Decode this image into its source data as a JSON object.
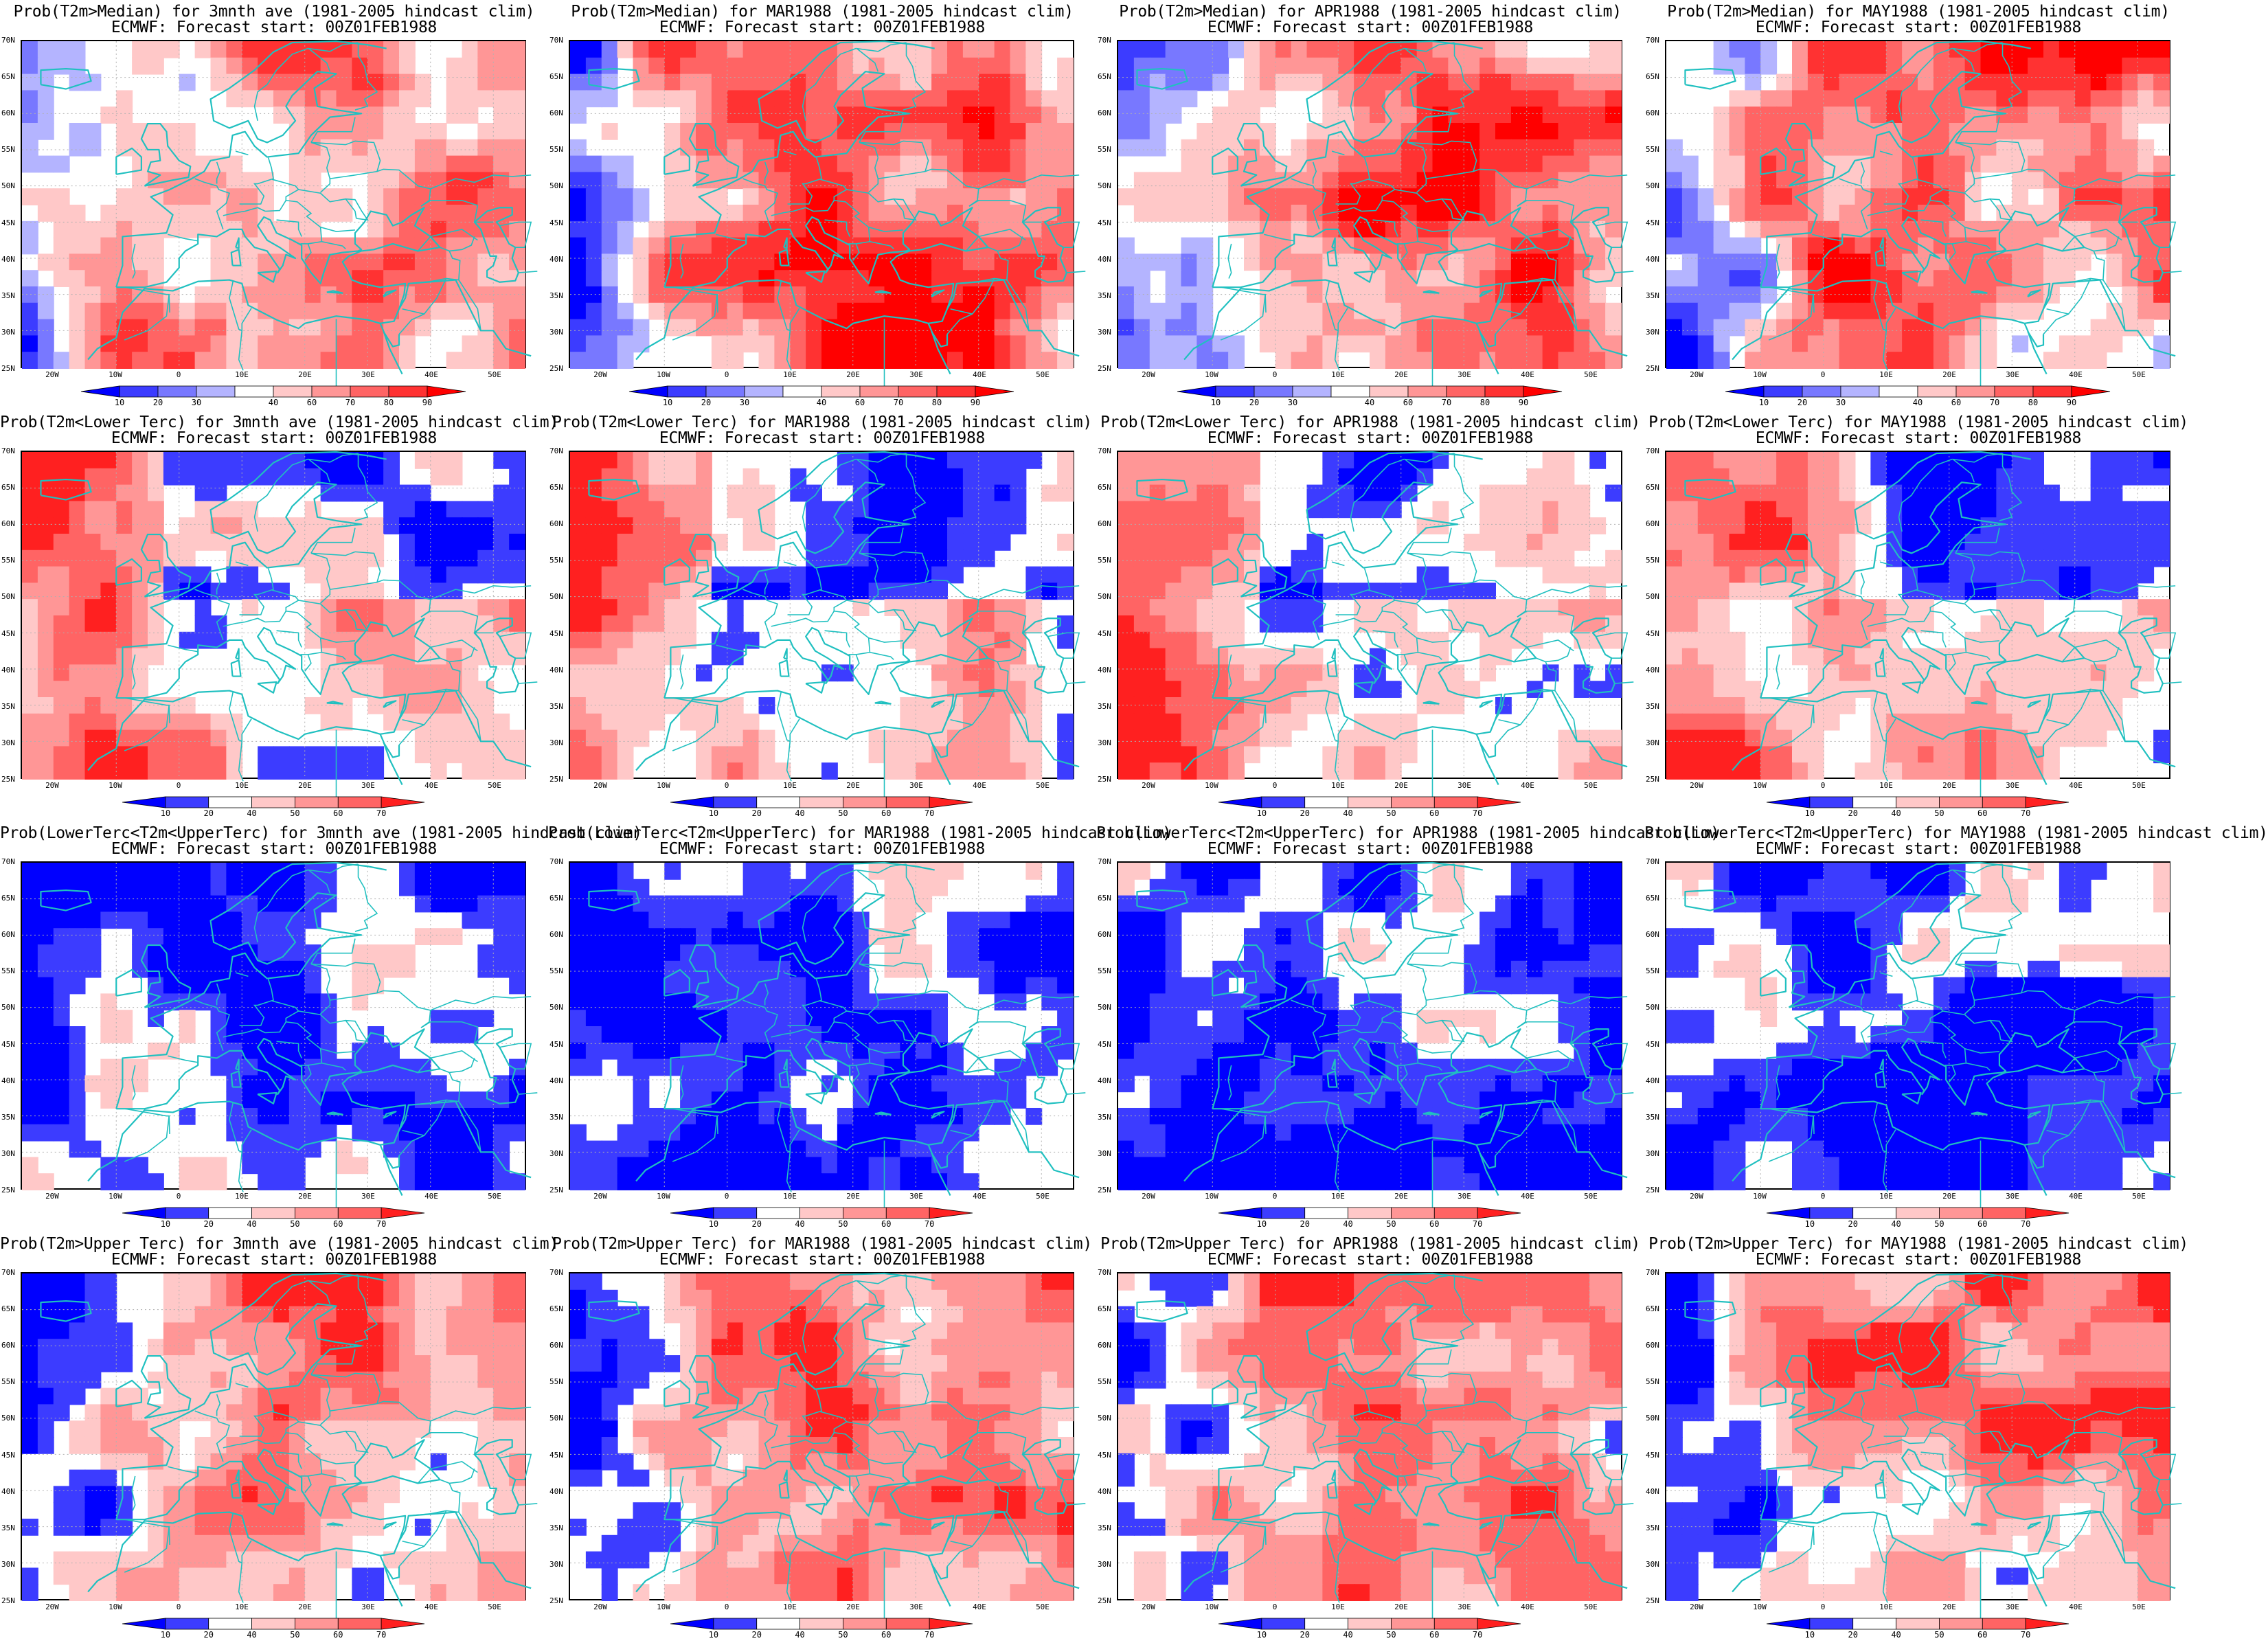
{
  "rows": [
    {
      "var_label": "Prob(T2m>Median)",
      "palette": [
        "#0000ff",
        "#3c3cff",
        "#7878ff",
        "#b4b4ff",
        "#ffffff",
        "#ffc8c8",
        "#ff9696",
        "#ff6464",
        "#ff3232",
        "#ff0000"
      ],
      "colorbar_labels": [
        "10",
        "20",
        "30",
        "40",
        "60",
        "70",
        "80",
        "90"
      ],
      "bias": 0.05
    },
    {
      "var_label": "Prob(T2m<Lower Terc)",
      "palette": [
        "#0000ff",
        "#3c3cff",
        "#ffffff",
        "#ffc8c8",
        "#ff9696",
        "#ff6464",
        "#ff2020"
      ],
      "colorbar_labels": [
        "10",
        "20",
        "40",
        "50",
        "60",
        "70"
      ],
      "bias": 0.1
    },
    {
      "var_label": "Prob(LowerTerc<T2m<UpperTerc)",
      "palette": [
        "#0000ff",
        "#3c3cff",
        "#ffffff",
        "#ffc8c8",
        "#ff9696",
        "#ff6464",
        "#ff2020"
      ],
      "colorbar_labels": [
        "10",
        "20",
        "40",
        "50",
        "60",
        "70"
      ],
      "bias": -0.35
    },
    {
      "var_label": "Prob(T2m>Upper Terc)",
      "palette": [
        "#0000ff",
        "#3c3cff",
        "#ffffff",
        "#ffc8c8",
        "#ff9696",
        "#ff6464",
        "#ff2020"
      ],
      "colorbar_labels": [
        "10",
        "20",
        "40",
        "50",
        "60",
        "70"
      ],
      "bias": 0.15
    }
  ],
  "columns": [
    {
      "period": "3mnth ave"
    },
    {
      "period": "MAR1988"
    },
    {
      "period": "APR1988"
    },
    {
      "period": "MAY1988"
    }
  ],
  "clim_label": "(1981-2005 hindcast clim)",
  "subtitle": "ECMWF: Forecast start: 00Z01FEB1988",
  "lat_labels": [
    "70N",
    "65N",
    "60N",
    "55N",
    "50N",
    "45N",
    "40N",
    "35N",
    "30N",
    "25N"
  ],
  "lon_labels": [
    "20W",
    "10W",
    "0",
    "10E",
    "20E",
    "30E",
    "40E",
    "50E"
  ],
  "coastline_color": "#20c0c0",
  "map_extent": {
    "lon": [
      -25,
      55
    ],
    "lat": [
      25,
      70
    ]
  },
  "panels": [
    {
      "name": "median-3mnth",
      "title1": "Prob(T2m>Median)  for 3mnth ave (1981-2005 hindcast clim)"
    },
    {
      "name": "median-mar",
      "title1": "Prob(T2m>Median)  for MAR1988 (1981-2005 hindcast clim)"
    },
    {
      "name": "median-apr",
      "title1": "Prob(T2m>Median)  for APR1988 (1981-2005 hindcast clim)"
    },
    {
      "name": "median-may",
      "title1": "Prob(T2m>Median)  for MAY1988 (1981-2005 hindcast clim)"
    },
    {
      "name": "lower-3mnth",
      "title1": "Prob(T2m<Lower Terc)  for 3mnth ave (1981-2005 hindcast clim)"
    },
    {
      "name": "lower-mar",
      "title1": "Prob(T2m<Lower Terc)  for MAR1988 (1981-2005 hindcast clim)"
    },
    {
      "name": "lower-apr",
      "title1": "Prob(T2m<Lower Terc)  for APR1988 (1981-2005 hindcast clim)"
    },
    {
      "name": "lower-may",
      "title1": "Prob(T2m<Lower Terc)  for MAY1988 (1981-2005 hindcast clim)"
    },
    {
      "name": "middle-3mnth",
      "title1": "Prob(LowerTerc<T2m<UpperTerc)  for 3mnth ave (1981-2005 hindcast clim)"
    },
    {
      "name": "middle-mar",
      "title1": "Prob(LowerTerc<T2m<UpperTerc)  for MAR1988 (1981-2005 hindcast clim)"
    },
    {
      "name": "middle-apr",
      "title1": "Prob(LowerTerc<T2m<UpperTerc)  for APR1988 (1981-2005 hindcast clim)"
    },
    {
      "name": "middle-may",
      "title1": "Prob(LowerTerc<T2m<UpperTerc)  for MAY1988 (1981-2005 hindcast clim)"
    },
    {
      "name": "upper-3mnth",
      "title1": "Prob(T2m>Upper Terc)  for 3mnth ave (1981-2005 hindcast clim)"
    },
    {
      "name": "upper-mar",
      "title1": "Prob(T2m>Upper Terc)  for MAR1988 (1981-2005 hindcast clim)"
    },
    {
      "name": "upper-apr",
      "title1": "Prob(T2m>Upper Terc)  for APR1988 (1981-2005 hindcast clim)"
    },
    {
      "name": "upper-may",
      "title1": "Prob(T2m>Upper Terc)  for MAY1988 (1981-2005 hindcast clim)"
    }
  ]
}
